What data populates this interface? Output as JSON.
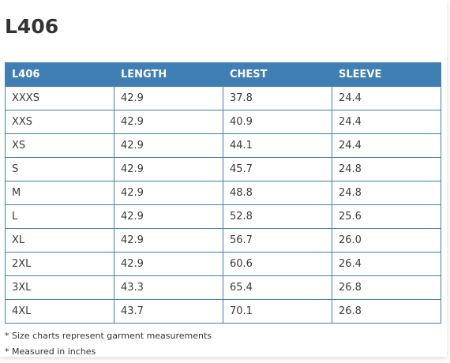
{
  "title": "L406",
  "table": {
    "headers": [
      "L406",
      "LENGTH",
      "CHEST",
      "SLEEVE"
    ],
    "rows": [
      [
        "XXXS",
        "42.9",
        "37.8",
        "24.4"
      ],
      [
        "XXS",
        "42.9",
        "40.9",
        "24.4"
      ],
      [
        "XS",
        "42.9",
        "44.1",
        "24.4"
      ],
      [
        "S",
        "42.9",
        "45.7",
        "24.8"
      ],
      [
        "M",
        "42.9",
        "48.8",
        "24.8"
      ],
      [
        "L",
        "42.9",
        "52.8",
        "25.6"
      ],
      [
        "XL",
        "42.9",
        "56.7",
        "26.0"
      ],
      [
        "2XL",
        "42.9",
        "60.6",
        "26.4"
      ],
      [
        "3XL",
        "43.3",
        "65.4",
        "26.8"
      ],
      [
        "4XL",
        "43.7",
        "70.1",
        "26.8"
      ]
    ]
  },
  "notes": [
    "* Size charts represent garment measurements",
    "* Measured in inches"
  ],
  "colors": {
    "header_bg": "#3f7fb3",
    "border": "#3f7fb3",
    "text": "#3a3a3a"
  }
}
